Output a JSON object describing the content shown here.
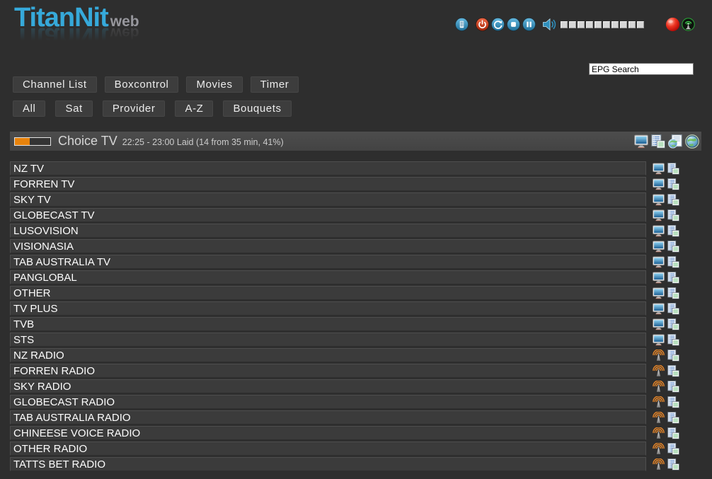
{
  "logo": {
    "title": "TitanNit",
    "suffix": "web"
  },
  "topbar": {
    "icons": [
      "remote-icon",
      "power-icon",
      "reload-icon",
      "stop-icon",
      "pause-icon",
      "speaker-icon",
      "record-icon",
      "stream-icon"
    ],
    "volume_segments": 10
  },
  "search": {
    "value": "EPG Search"
  },
  "nav": {
    "items": [
      "Channel List",
      "Boxcontrol",
      "Movies",
      "Timer"
    ]
  },
  "filters": {
    "items": [
      "All",
      "Sat",
      "Provider",
      "A-Z",
      "Bouquets"
    ]
  },
  "now_playing": {
    "channel": "Choice TV",
    "details": "22:25 - 23:00 Laid (14 from 35 min, 41%)",
    "progress_percent": 41,
    "icons": [
      "zap-monitor-icon",
      "epg-list-icon",
      "webtv-page-icon",
      "web-globe-icon"
    ]
  },
  "channels": [
    {
      "name": "NZ TV",
      "type": "tv"
    },
    {
      "name": "FORREN TV",
      "type": "tv"
    },
    {
      "name": "SKY TV",
      "type": "tv"
    },
    {
      "name": "GLOBECAST TV",
      "type": "tv"
    },
    {
      "name": "LUSOVISION",
      "type": "tv"
    },
    {
      "name": "VISIONASIA",
      "type": "tv"
    },
    {
      "name": "TAB AUSTRALIA TV",
      "type": "tv"
    },
    {
      "name": "PANGLOBAL",
      "type": "tv"
    },
    {
      "name": "OTHER",
      "type": "tv"
    },
    {
      "name": "TV PLUS",
      "type": "tv"
    },
    {
      "name": "TVB",
      "type": "tv"
    },
    {
      "name": "STS",
      "type": "tv"
    },
    {
      "name": "NZ RADIO",
      "type": "radio"
    },
    {
      "name": "FORREN RADIO",
      "type": "radio"
    },
    {
      "name": "SKY RADIO",
      "type": "radio"
    },
    {
      "name": "GLOBECAST RADIO",
      "type": "radio"
    },
    {
      "name": "TAB AUSTRALIA RADIO",
      "type": "radio"
    },
    {
      "name": "CHINEESE VOICE RADIO",
      "type": "radio"
    },
    {
      "name": "OTHER RADIO",
      "type": "radio"
    },
    {
      "name": "TATTS BET RADIO",
      "type": "radio"
    }
  ],
  "colors": {
    "accent_blue": "#36a9da",
    "progress_orange": "#e8830c",
    "record_red": "#e02010",
    "stream_green": "#42d552",
    "radio_orange": "#e8872a"
  }
}
